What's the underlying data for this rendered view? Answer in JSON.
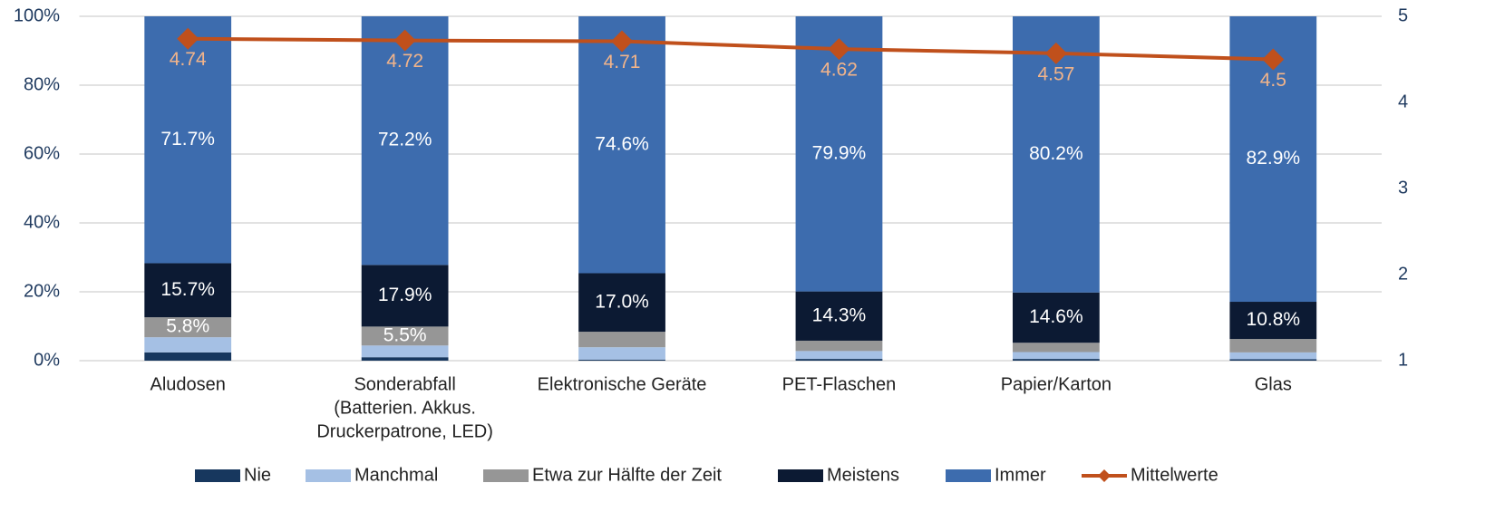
{
  "chart_data": {
    "type": "bar",
    "stacked": true,
    "categories": [
      "Aludosen",
      [
        "Sonderabfall",
        "(Batterien. Akkus.",
        "Druckerpatrone, LED)"
      ],
      "Elektronische Geräte",
      "PET-Flaschen",
      "Papier/Karton",
      "Glas"
    ],
    "series": [
      {
        "name": "Nie",
        "color": "#17375e",
        "values": [
          2.4,
          1.0,
          0.3,
          0.5,
          0.5,
          0.4
        ]
      },
      {
        "name": "Manchmal",
        "color": "#a5c0e4",
        "values": [
          4.4,
          3.4,
          3.6,
          2.3,
          2.0,
          2.0
        ]
      },
      {
        "name": "Etwa zur Hälfte der Zeit",
        "color": "#969696",
        "values": [
          5.8,
          5.5,
          4.5,
          3.0,
          2.7,
          3.9
        ],
        "value_labels": [
          "5.8%",
          "5.5%",
          null,
          null,
          null,
          null
        ]
      },
      {
        "name": "Meistens",
        "color": "#0c1a33",
        "values": [
          15.7,
          17.9,
          17.0,
          14.3,
          14.6,
          10.8
        ],
        "value_labels": [
          "15.7%",
          "17.9%",
          "17.0%",
          "14.3%",
          "14.6%",
          "10.8%"
        ]
      },
      {
        "name": "Immer",
        "color": "#3d6cae",
        "values": [
          71.7,
          72.2,
          74.6,
          79.9,
          80.2,
          82.9
        ],
        "value_labels": [
          "71.7%",
          "72.2%",
          "74.6%",
          "79.9%",
          "80.2%",
          "82.9%"
        ]
      },
      {
        "name": "Mittelwerte",
        "type": "line",
        "axis": "y2",
        "color": "#c0501c",
        "values": [
          4.74,
          4.72,
          4.71,
          4.62,
          4.57,
          4.5
        ]
      }
    ],
    "ylim": [
      0,
      100
    ],
    "yticks": [
      {
        "value": 0,
        "label": "0%"
      },
      {
        "value": 20,
        "label": "20%"
      },
      {
        "value": 40,
        "label": "40%"
      },
      {
        "value": 60,
        "label": "60%"
      },
      {
        "value": 80,
        "label": "80%"
      },
      {
        "value": 100,
        "label": "100%"
      }
    ],
    "y2lim": [
      1,
      5
    ],
    "y2ticks": [
      1,
      2,
      3,
      4,
      5
    ],
    "grid": true,
    "legend": "bottom"
  }
}
